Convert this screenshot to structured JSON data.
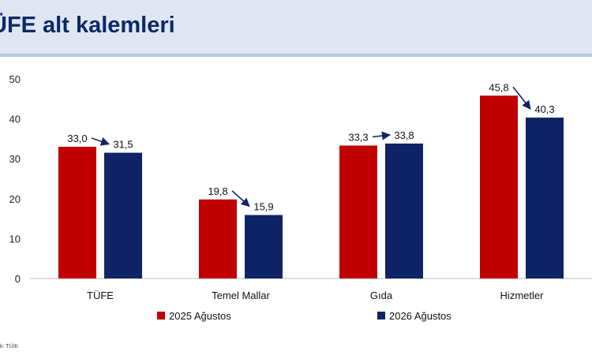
{
  "page": {
    "title": "ÜFE alt kalemleri",
    "source": "k: TÜİK"
  },
  "chart_data": {
    "type": "bar",
    "categories": [
      "TÜFE",
      "Temel Mallar",
      "Gıda",
      "Hizmetler"
    ],
    "series": [
      {
        "name": "2025 Ağustos",
        "color": "#c00000",
        "values": [
          33.0,
          19.8,
          33.3,
          45.8
        ],
        "labels": [
          "33,0",
          "19,8",
          "33,3",
          "45,8"
        ]
      },
      {
        "name": "2026 Ağustos",
        "color": "#0f2466",
        "values": [
          31.5,
          15.9,
          33.8,
          40.3
        ],
        "labels": [
          "31,5",
          "15,9",
          "33,8",
          "40,3"
        ]
      }
    ],
    "ylim": [
      0,
      50
    ],
    "yticks": [
      "0",
      "10",
      "20",
      "30",
      "40",
      "50"
    ],
    "ytick_values": [
      0,
      10,
      20,
      30,
      40,
      50
    ],
    "grid": false,
    "legend_position": "bottom",
    "annotations": "arrows from 2025 value label to 2026 value label in each category",
    "xlabel": "",
    "ylabel": ""
  }
}
